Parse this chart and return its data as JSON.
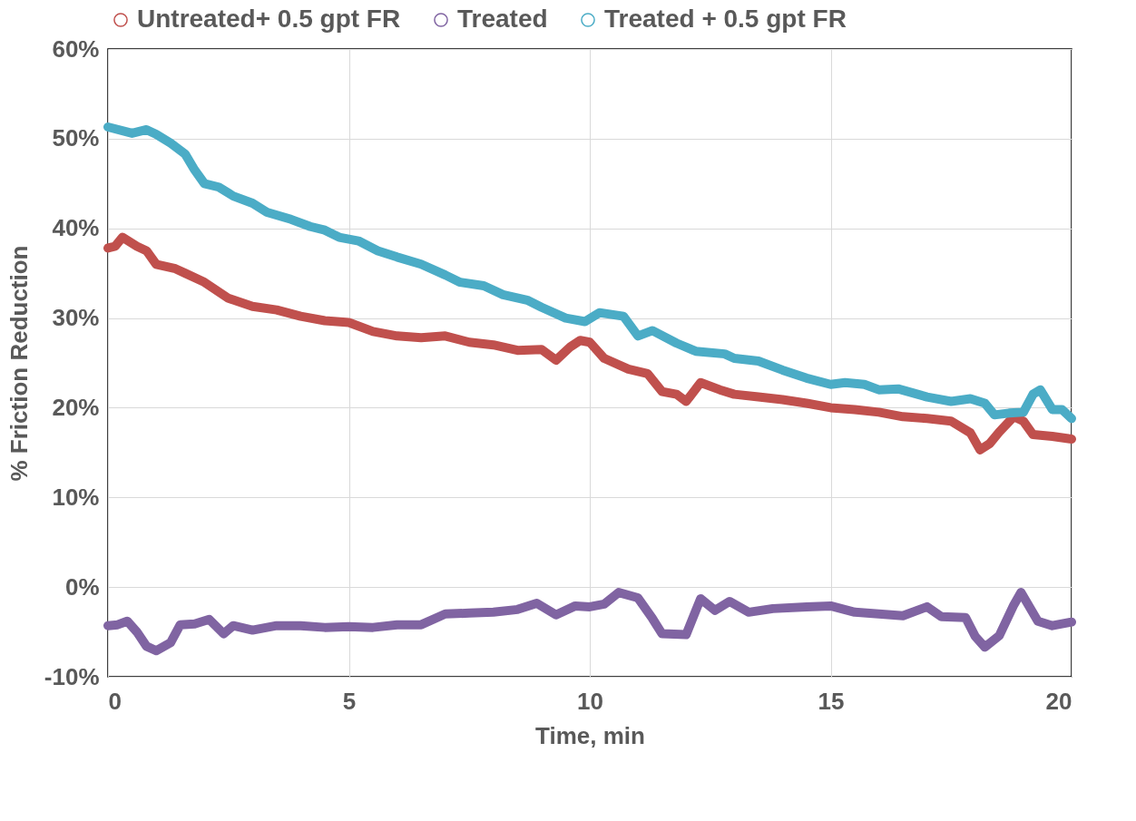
{
  "chart_data": {
    "type": "line",
    "xlabel": "Time, min",
    "ylabel": "% Friction Reduction",
    "xlim": [
      0,
      20
    ],
    "xticks": [
      0,
      5,
      10,
      15,
      20
    ],
    "ylim": [
      -10,
      60
    ],
    "yticks": [
      {
        "value": -10,
        "label": "-10%"
      },
      {
        "value": 0,
        "label": "0%"
      },
      {
        "value": 10,
        "label": "10%"
      },
      {
        "value": 20,
        "label": "20%"
      },
      {
        "value": 30,
        "label": "30%"
      },
      {
        "value": 40,
        "label": "40%"
      },
      {
        "value": 50,
        "label": "50%"
      },
      {
        "value": 60,
        "label": "60%"
      }
    ],
    "grid": true,
    "legend": "top",
    "series": [
      {
        "name": "Untreated+ 0.5 gpt FR",
        "color": "#c0504d",
        "x": [
          0,
          0.15,
          0.3,
          0.6,
          0.8,
          1.0,
          1.4,
          1.6,
          2.0,
          2.5,
          3.0,
          3.5,
          4.0,
          4.5,
          5.0,
          5.5,
          6.0,
          6.5,
          7.0,
          7.5,
          8.0,
          8.5,
          9.0,
          9.3,
          9.6,
          9.8,
          10.0,
          10.3,
          10.8,
          11.2,
          11.5,
          11.8,
          12.0,
          12.3,
          12.7,
          13.0,
          13.5,
          14.0,
          14.5,
          15.0,
          15.5,
          16.0,
          16.5,
          17.0,
          17.5,
          17.9,
          18.1,
          18.3,
          18.5,
          18.8,
          19.0,
          19.2,
          19.6,
          20.0
        ],
        "values": [
          37.8,
          38.0,
          39.0,
          38.0,
          37.5,
          36.0,
          35.5,
          35.0,
          34.0,
          32.2,
          31.3,
          30.9,
          30.2,
          29.7,
          29.5,
          28.5,
          28.0,
          27.8,
          28.0,
          27.3,
          27.0,
          26.4,
          26.5,
          25.3,
          26.8,
          27.5,
          27.3,
          25.5,
          24.3,
          23.8,
          21.8,
          21.5,
          20.7,
          22.8,
          22.0,
          21.5,
          21.2,
          20.9,
          20.5,
          20.0,
          19.8,
          19.5,
          19.0,
          18.8,
          18.5,
          17.2,
          15.3,
          16.0,
          17.3,
          19.0,
          18.5,
          17.0,
          16.8,
          16.5
        ]
      },
      {
        "name": "Treated",
        "color": "#8064a2",
        "x": [
          0,
          0.2,
          0.4,
          0.6,
          0.8,
          1.0,
          1.3,
          1.5,
          1.8,
          2.1,
          2.4,
          2.6,
          3.0,
          3.5,
          4.0,
          4.5,
          5.0,
          5.5,
          6.0,
          6.5,
          7.0,
          7.5,
          8.0,
          8.5,
          8.9,
          9.3,
          9.7,
          10.0,
          10.3,
          10.6,
          11.0,
          11.3,
          11.5,
          12.0,
          12.3,
          12.6,
          12.9,
          13.3,
          13.8,
          14.5,
          15.0,
          15.5,
          16.0,
          16.5,
          17.0,
          17.3,
          17.8,
          18.0,
          18.2,
          18.5,
          18.8,
          18.95,
          19.3,
          19.6,
          20.0
        ],
        "values": [
          -4.3,
          -4.2,
          -3.8,
          -5.0,
          -6.6,
          -7.1,
          -6.2,
          -4.2,
          -4.1,
          -3.6,
          -5.2,
          -4.3,
          -4.8,
          -4.3,
          -4.3,
          -4.5,
          -4.4,
          -4.5,
          -4.2,
          -4.2,
          -3.0,
          -2.9,
          -2.8,
          -2.5,
          -1.8,
          -3.1,
          -2.1,
          -2.2,
          -1.9,
          -0.6,
          -1.2,
          -3.5,
          -5.2,
          -5.3,
          -1.3,
          -2.6,
          -1.6,
          -2.8,
          -2.4,
          -2.2,
          -2.1,
          -2.8,
          -3.0,
          -3.2,
          -2.2,
          -3.3,
          -3.4,
          -5.5,
          -6.7,
          -5.4,
          -2.0,
          -0.6,
          -3.8,
          -4.3,
          -3.9
        ]
      },
      {
        "name": "Treated + 0.5 gpt FR",
        "color": "#4bacc6",
        "x": [
          0,
          0.5,
          0.8,
          1.0,
          1.3,
          1.6,
          1.8,
          2.0,
          2.3,
          2.6,
          3.0,
          3.3,
          3.8,
          4.2,
          4.5,
          4.8,
          5.2,
          5.6,
          6.0,
          6.5,
          7.0,
          7.3,
          7.8,
          8.2,
          8.7,
          9.0,
          9.5,
          9.9,
          10.2,
          10.7,
          11.0,
          11.3,
          11.8,
          12.2,
          12.8,
          13.0,
          13.5,
          14.0,
          14.5,
          15.0,
          15.3,
          15.7,
          16.0,
          16.4,
          17.0,
          17.5,
          17.9,
          18.2,
          18.4,
          18.7,
          19.0,
          19.2,
          19.35,
          19.6,
          19.8,
          20.0
        ],
        "values": [
          51.3,
          50.6,
          51.0,
          50.5,
          49.5,
          48.3,
          46.5,
          45.0,
          44.6,
          43.6,
          42.8,
          41.8,
          41.0,
          40.2,
          39.8,
          39.0,
          38.6,
          37.5,
          36.8,
          36.0,
          34.8,
          34.0,
          33.6,
          32.6,
          32.0,
          31.2,
          30.0,
          29.6,
          30.6,
          30.2,
          28.0,
          28.6,
          27.2,
          26.3,
          26.0,
          25.5,
          25.2,
          24.2,
          23.3,
          22.6,
          22.8,
          22.6,
          22.0,
          22.1,
          21.2,
          20.7,
          21.0,
          20.5,
          19.2,
          19.4,
          19.5,
          21.5,
          22.0,
          19.8,
          19.8,
          18.8
        ]
      }
    ]
  }
}
